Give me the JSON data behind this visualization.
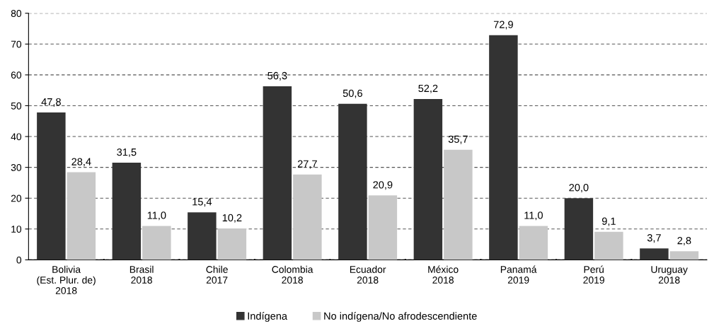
{
  "chart_data": {
    "type": "bar",
    "categories": [
      "Bolivia\n(Est. Plur. de)\n2018",
      "Brasil\n2018",
      "Chile\n2017",
      "Colombia\n2018",
      "Ecuador\n2018",
      "México\n2018",
      "Panamá\n2019",
      "Perú\n2019",
      "Uruguay\n2018"
    ],
    "series": [
      {
        "name": "Indígena",
        "color": "#333333",
        "values": [
          47.8,
          31.5,
          15.4,
          56.3,
          50.6,
          52.2,
          72.9,
          20.0,
          3.7
        ],
        "value_labels": [
          "47,8",
          "31,5",
          "15,4",
          "56,3",
          "50,6",
          "52,2",
          "72,9",
          "20,0",
          "3,7"
        ]
      },
      {
        "name": "No indígena/No afrodescendiente",
        "color": "#c8c8c8",
        "values": [
          28.4,
          11.0,
          10.2,
          27.7,
          20.9,
          35.7,
          11.0,
          9.1,
          2.8
        ],
        "value_labels": [
          "28,4",
          "11,0",
          "10,2",
          "27,7",
          "20,9",
          "35,7",
          "11,0",
          "9,1",
          "2,8"
        ]
      }
    ],
    "ylim": [
      0,
      80
    ],
    "yticks": [
      0,
      10,
      20,
      30,
      40,
      50,
      60,
      70,
      80
    ],
    "grid": "y",
    "legend": "bottom"
  }
}
